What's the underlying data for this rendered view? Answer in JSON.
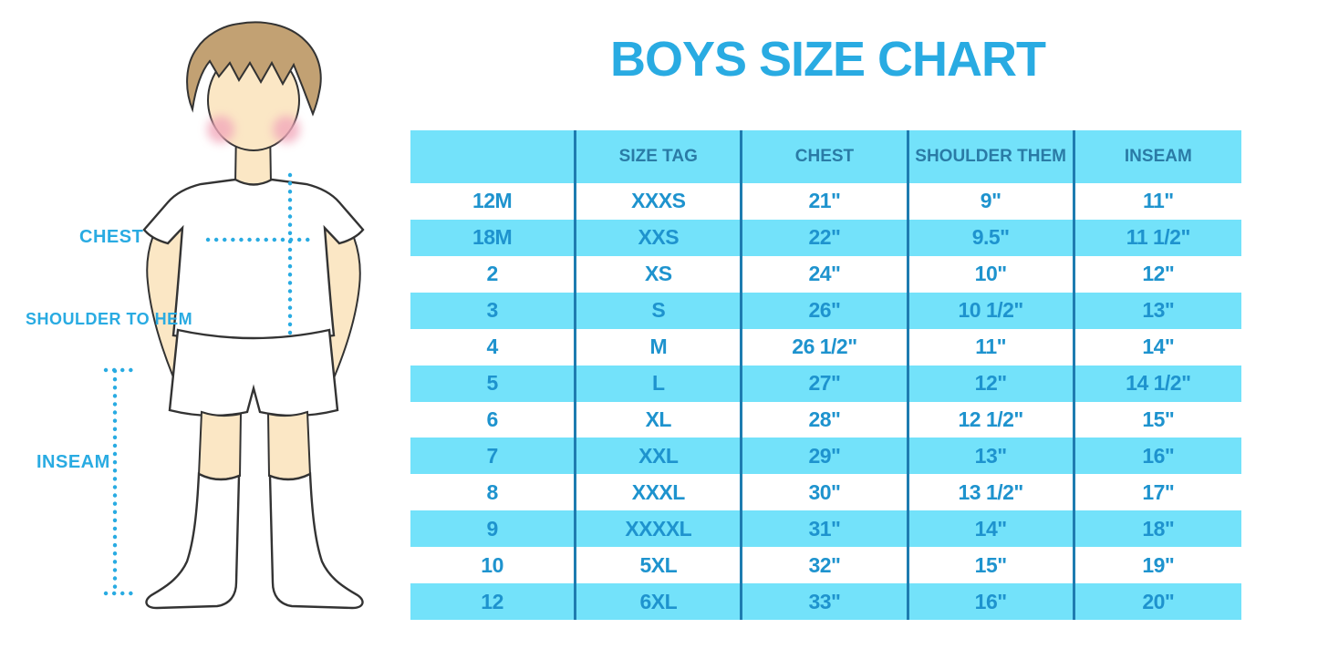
{
  "page": {
    "title": "BOYS SIZE CHART"
  },
  "figure": {
    "labels": {
      "chest": "CHEST",
      "shoulder_to_hem": "SHOULDER TO HEM",
      "inseam": "INSEAM"
    }
  },
  "chart_data": {
    "type": "table",
    "title": "BOYS SIZE CHART",
    "columns": [
      "",
      "SIZE TAG",
      "CHEST",
      "SHOULDER THEM",
      "INSEAM"
    ],
    "rows": [
      [
        "12M",
        "XXXS",
        "21\"",
        "9\"",
        "11\""
      ],
      [
        "18M",
        "XXS",
        "22\"",
        "9.5\"",
        "11 1/2\""
      ],
      [
        "2",
        "XS",
        "24\"",
        "10\"",
        "12\""
      ],
      [
        "3",
        "S",
        "26\"",
        "10 1/2\"",
        "13\""
      ],
      [
        "4",
        "M",
        "26 1/2\"",
        "11\"",
        "14\""
      ],
      [
        "5",
        "L",
        "27\"",
        "12\"",
        "14 1/2\""
      ],
      [
        "6",
        "XL",
        "28\"",
        "12 1/2\"",
        "15\""
      ],
      [
        "7",
        "XXL",
        "29\"",
        "13\"",
        "16\""
      ],
      [
        "8",
        "XXXL",
        "30\"",
        "13 1/2\"",
        "17\""
      ],
      [
        "9",
        "XXXXL",
        "31\"",
        "14\"",
        "18\""
      ],
      [
        "10",
        "5XL",
        "32\"",
        "15\"",
        "19\""
      ],
      [
        "12",
        "6XL",
        "33\"",
        "16\"",
        "20\""
      ]
    ],
    "layout": {
      "stripe_pattern": "header cyan, then body rows alternate white/cyan starting with white",
      "grid": "vertical column dividers only, no horizontal borders"
    },
    "colors": {
      "title_blue": "#29ABE2",
      "table_stripe": "#73E2FA",
      "table_header_text": "#2A7BA6",
      "table_body_text": "#1E93CE",
      "table_divider": "#1E7CB0",
      "label_blue": "#29ABE2",
      "dotted_line": "#29ABE2",
      "skin": "#FBE7C5",
      "hair": "#C2A173",
      "cheek": "#F2A9BB",
      "outline": "#333333"
    }
  }
}
